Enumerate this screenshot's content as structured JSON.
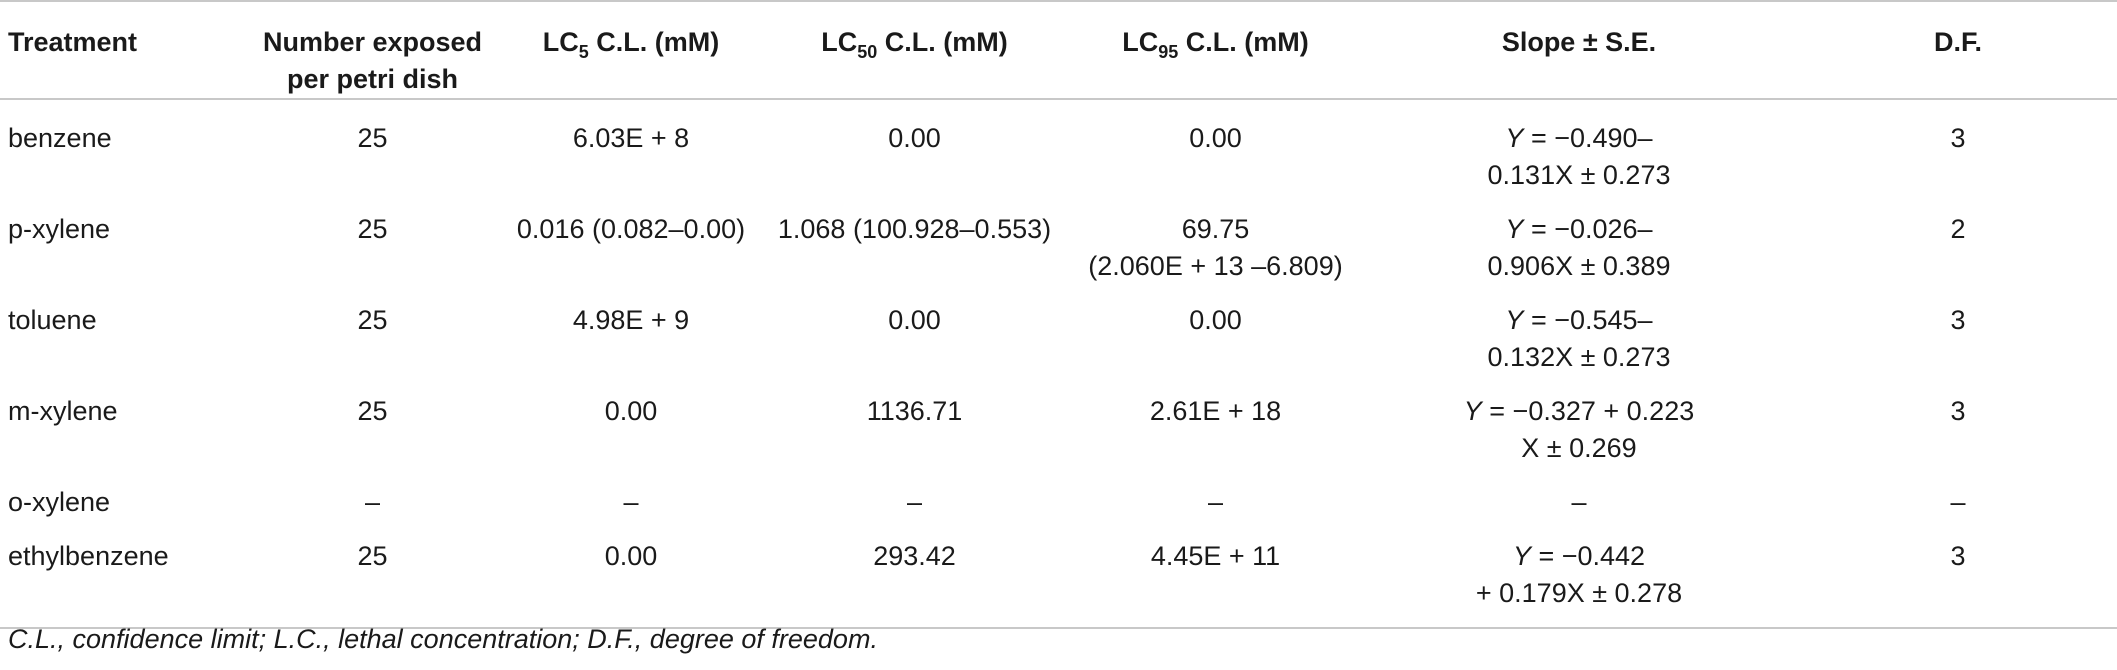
{
  "headers": {
    "treatment": "Treatment",
    "number_exposed_line1": "Number exposed",
    "number_exposed_line2": "per petri dish",
    "lc5_prefix": "LC",
    "lc5_sub": "5",
    "lc5_suffix": " C.L. (mM)",
    "lc50_prefix": "LC",
    "lc50_sub": "50",
    "lc50_suffix": " C.L. (mM)",
    "lc95_prefix": "LC",
    "lc95_sub": "95",
    "lc95_suffix": " C.L. (mM)",
    "slope": "Slope ± S.E.",
    "df": "D.F."
  },
  "rows": [
    {
      "treatment": "benzene",
      "number": "25",
      "lc5": "6.03E + 8",
      "lc50": "0.00",
      "lc95_line1": "0.00",
      "lc95_line2": "",
      "slope_y": "Y",
      "slope_line1": " = −0.490–",
      "slope_line2": "0.131X ± 0.273",
      "df": "3"
    },
    {
      "treatment": "p-xylene",
      "number": "25",
      "lc5": "0.016 (0.082–0.00)",
      "lc50": "1.068 (100.928–0.553)",
      "lc95_line1": "69.75",
      "lc95_line2": "(2.060E + 13 –6.809)",
      "slope_y": "Y",
      "slope_line1": " = −0.026–",
      "slope_line2": "0.906X ± 0.389",
      "df": "2"
    },
    {
      "treatment": "toluene",
      "number": "25",
      "lc5": "4.98E + 9",
      "lc50": "0.00",
      "lc95_line1": "0.00",
      "lc95_line2": "",
      "slope_y": "Y",
      "slope_line1": " = −0.545–",
      "slope_line2": "0.132X ± 0.273",
      "df": "3"
    },
    {
      "treatment": "m-xylene",
      "number": "25",
      "lc5": "0.00",
      "lc50": "1136.71",
      "lc95_line1": "2.61E + 18",
      "lc95_line2": "",
      "slope_y": "Y",
      "slope_line1": " = −0.327 + 0.223",
      "slope_line2": "X ± 0.269",
      "df": "3"
    },
    {
      "treatment": "o-xylene",
      "number": "–",
      "lc5": "–",
      "lc50": "–",
      "lc95_line1": "–",
      "lc95_line2": "",
      "slope_y": "",
      "slope_line1": "–",
      "slope_line2": "",
      "df": "–"
    },
    {
      "treatment": "ethylbenzene",
      "number": "25",
      "lc5": "0.00",
      "lc50": "293.42",
      "lc95_line1": "4.45E + 11",
      "lc95_line2": "",
      "slope_y": "Y",
      "slope_line1": " = −0.442",
      "slope_line2": "+ 0.179X ± 0.278",
      "df": "3"
    }
  ],
  "footnote": "C.L., confidence limit; L.C., lethal concentration; D.F., degree of freedom."
}
